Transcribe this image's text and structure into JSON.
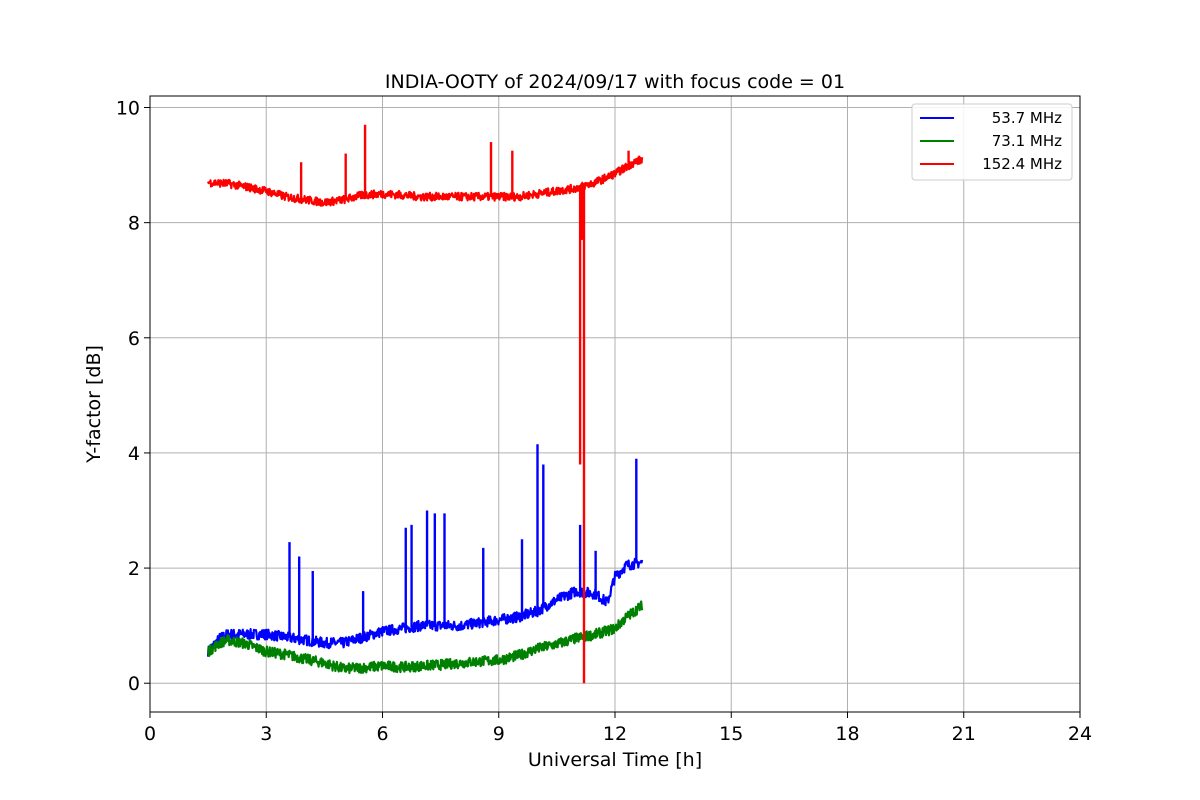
{
  "chart_data": {
    "type": "line",
    "title": "INDIA-OOTY of 2024/09/17 with focus code = 01",
    "xlabel": "Universal Time [h]",
    "ylabel": "Y-factor [dB]",
    "xlim": [
      0,
      24
    ],
    "ylim": [
      -0.5,
      10.2
    ],
    "xticks": [
      0,
      3,
      6,
      9,
      12,
      15,
      18,
      21,
      24
    ],
    "yticks": [
      0,
      2,
      4,
      6,
      8,
      10
    ],
    "grid": true,
    "legend_position": "top-right",
    "series": [
      {
        "name": "  53.7 MHz",
        "color": "#0000ff",
        "x": [
          1.5,
          1.8,
          2.0,
          2.5,
          3.0,
          3.5,
          4.0,
          4.5,
          5.0,
          5.5,
          6.0,
          6.5,
          7.0,
          7.5,
          8.0,
          8.5,
          9.0,
          9.5,
          10.0,
          10.5,
          11.0,
          11.5,
          11.8,
          12.0,
          12.3,
          12.7
        ],
        "values": [
          0.55,
          0.78,
          0.85,
          0.85,
          0.85,
          0.8,
          0.75,
          0.7,
          0.7,
          0.8,
          0.9,
          0.95,
          1.0,
          1.0,
          1.0,
          1.05,
          1.1,
          1.15,
          1.25,
          1.45,
          1.6,
          1.55,
          1.4,
          1.85,
          2.05,
          2.1
        ],
        "spikes": [
          {
            "x": 3.6,
            "y": 2.45
          },
          {
            "x": 3.85,
            "y": 2.2
          },
          {
            "x": 4.2,
            "y": 1.95
          },
          {
            "x": 5.5,
            "y": 1.6
          },
          {
            "x": 6.6,
            "y": 2.7
          },
          {
            "x": 6.75,
            "y": 2.75
          },
          {
            "x": 7.15,
            "y": 3.0
          },
          {
            "x": 7.35,
            "y": 2.95
          },
          {
            "x": 7.6,
            "y": 2.95
          },
          {
            "x": 8.6,
            "y": 2.35
          },
          {
            "x": 9.6,
            "y": 2.5
          },
          {
            "x": 10.0,
            "y": 4.15
          },
          {
            "x": 10.15,
            "y": 3.8
          },
          {
            "x": 11.1,
            "y": 2.75
          },
          {
            "x": 11.5,
            "y": 2.3
          },
          {
            "x": 12.55,
            "y": 3.9
          }
        ]
      },
      {
        "name": "  73.1 MHz",
        "color": "#008000",
        "x": [
          1.5,
          1.8,
          2.0,
          2.5,
          3.0,
          3.5,
          4.0,
          4.5,
          5.0,
          5.5,
          6.0,
          6.5,
          7.0,
          7.5,
          8.0,
          8.5,
          9.0,
          9.5,
          10.0,
          10.5,
          11.0,
          11.5,
          12.0,
          12.3,
          12.7
        ],
        "values": [
          0.55,
          0.7,
          0.75,
          0.68,
          0.55,
          0.5,
          0.42,
          0.35,
          0.25,
          0.27,
          0.3,
          0.28,
          0.3,
          0.32,
          0.35,
          0.38,
          0.4,
          0.48,
          0.6,
          0.68,
          0.78,
          0.85,
          0.95,
          1.15,
          1.35
        ],
        "spikes": []
      },
      {
        "name": "152.4 MHz",
        "color": "#ff0000",
        "x": [
          1.5,
          2.0,
          2.5,
          3.0,
          3.5,
          4.0,
          4.5,
          5.0,
          5.5,
          6.0,
          6.5,
          7.0,
          7.5,
          8.0,
          8.5,
          9.0,
          9.5,
          10.0,
          10.5,
          11.0,
          11.5,
          12.0,
          12.5,
          12.7
        ],
        "values": [
          8.7,
          8.68,
          8.62,
          8.55,
          8.45,
          8.4,
          8.35,
          8.4,
          8.48,
          8.5,
          8.48,
          8.45,
          8.45,
          8.45,
          8.45,
          8.45,
          8.45,
          8.5,
          8.55,
          8.6,
          8.7,
          8.85,
          9.05,
          9.1
        ],
        "spikes": [
          {
            "x": 3.9,
            "y": 9.05
          },
          {
            "x": 5.05,
            "y": 9.2
          },
          {
            "x": 5.55,
            "y": 9.7
          },
          {
            "x": 8.8,
            "y": 9.4
          },
          {
            "x": 9.35,
            "y": 9.25
          },
          {
            "x": 12.35,
            "y": 9.25
          },
          {
            "x": 11.2,
            "y": 0.0
          },
          {
            "x": 11.1,
            "y": 3.8
          },
          {
            "x": 11.15,
            "y": 7.7
          }
        ]
      }
    ]
  }
}
